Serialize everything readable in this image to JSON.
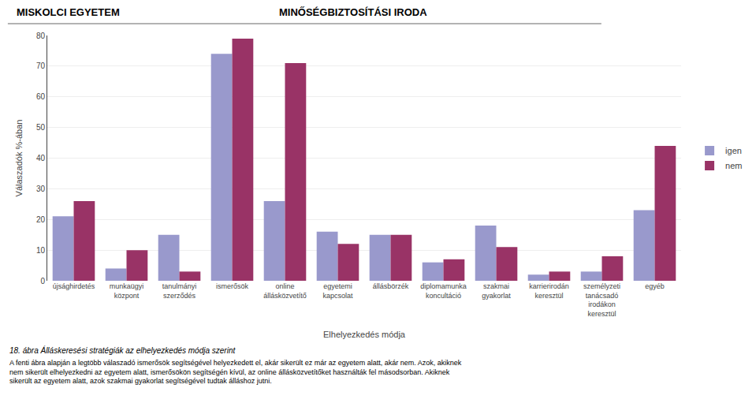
{
  "chart_data": {
    "type": "bar",
    "categories": [
      "újsághirdetés",
      "munkaügyi\nközpont",
      "tanulmányi\nszerződés",
      "ismerősök",
      "online\nállásközvetítő",
      "egyetemi\nkapcsolat",
      "állásbörzék",
      "diplomamunka\nkoncultáció",
      "szakmai\ngyakorlat",
      "karrierirodán\nkeresztül",
      "személyzeti\ntanácsadó\nirodákon\nkeresztül",
      "egyéb"
    ],
    "series": [
      {
        "name": "igen",
        "color": "#9999cc",
        "values": [
          21,
          4,
          15,
          74,
          26,
          16,
          15,
          6,
          18,
          2,
          3,
          23
        ]
      },
      {
        "name": "nem",
        "color": "#993366",
        "values": [
          26,
          10,
          3,
          79,
          71,
          12,
          15,
          7,
          11,
          3,
          8,
          44
        ]
      }
    ],
    "xlabel": "Elhelyezkedés módja",
    "ylabel": "Válaszadók %-ában",
    "ylim": [
      0,
      80
    ],
    "yticks": [
      0,
      10,
      20,
      30,
      40,
      50,
      60,
      70,
      80
    ],
    "grid": true,
    "legend": "right",
    "annotations": [
      "MISKOLCI EGYETEM",
      "MINŐSÉGBIZTOSÍTÁSI IRODA",
      "18. ábra Álláskeresési stratégiák az elhelyezkedés módja szerint",
      "A fenti ábra alapján a legtöbb válaszadó ismerősök segítségével helyezkedett el, akár sikerült ez már az egyetem alatt, akár nem. Azok, akiknek\nnem sikerült elhelyezkedni az egyetem alatt, ismerősökön segítségén kívül, az online állásközvetítőket használták fel másodsorban. Akiknek\nsikerült az egyetem alatt, azok szakmai gyakorlat segítségével tudtak álláshoz jutni."
    ]
  }
}
